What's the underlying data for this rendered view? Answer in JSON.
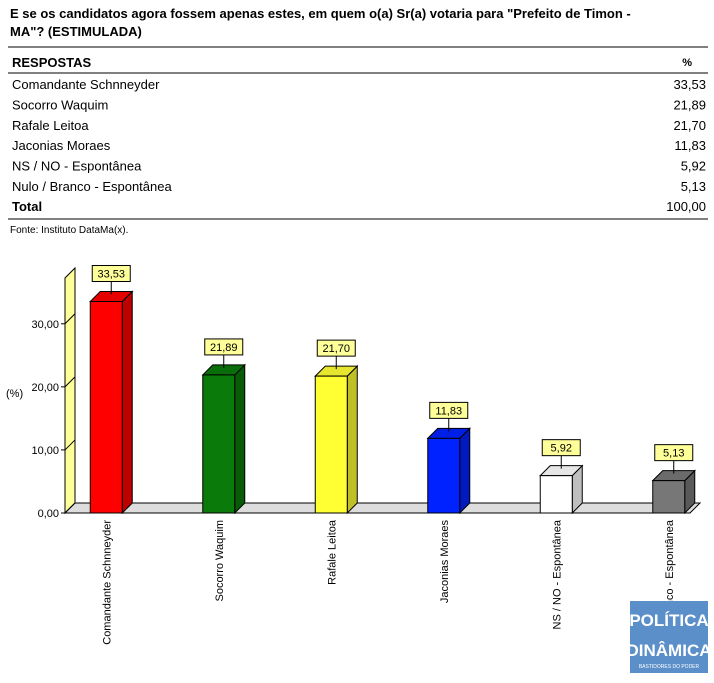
{
  "question": "E se os candidatos agora fossem apenas estes, em quem o(a) Sr(a) votaria para \"Prefeito de Timon -",
  "question_cont": "MA\"? (ESTIMULADA)",
  "table": {
    "header": [
      "RESPOSTAS",
      "%"
    ],
    "rows": [
      [
        "Comandante Schnneyder",
        "33,53"
      ],
      [
        "Socorro Waquim",
        "21,89"
      ],
      [
        "Rafale Leitoa",
        "21,70"
      ],
      [
        "Jaconias Moraes",
        "11,83"
      ],
      [
        "NS / NO - Espontânea",
        "5,92"
      ],
      [
        "Nulo / Branco - Espontânea",
        "5,13"
      ]
    ],
    "total": [
      "Total",
      "100,00"
    ]
  },
  "source": "Fonte: Instituto DataMa(x).",
  "watermark": {
    "line1": "POLÍTICA",
    "line2": "DINÂMICA",
    "tagline": "BASTIDORES DO PODER"
  },
  "chart_data": {
    "type": "bar3d",
    "y_label": "(%)",
    "categories": [
      "Comandante Schnneyder",
      "Socorro Waquim",
      "Rafale Leitoa",
      "Jaconias Moraes",
      "NS / NO - Espontânea",
      "Nulo / Branco - Espontânea"
    ],
    "values": [
      33.53,
      21.89,
      21.7,
      11.83,
      5.92,
      5.13
    ],
    "value_labels": [
      "33,53",
      "21,89",
      "21,70",
      "11,83",
      "5,92",
      "5,13"
    ],
    "colors": [
      "#ff0000",
      "#0a7a0a",
      "#ffff33",
      "#0022ff",
      "#ffffff",
      "#777777"
    ],
    "ylim": [
      0,
      39
    ],
    "yticks": [
      {
        "value": 0,
        "label": "0,00"
      },
      {
        "value": 10,
        "label": "10,00"
      },
      {
        "value": 20,
        "label": "20,00"
      },
      {
        "value": 30,
        "label": "30,00"
      }
    ]
  }
}
